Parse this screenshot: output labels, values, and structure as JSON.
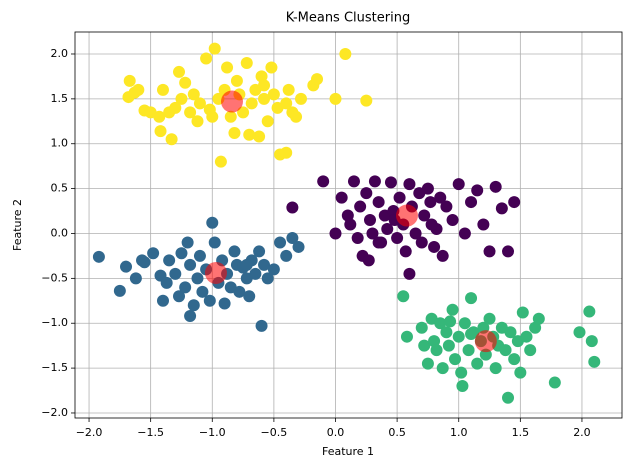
{
  "chart_data": {
    "type": "scatter",
    "title": "K-Means Clustering",
    "x_label": "Feature 1",
    "y_label": "Feature 2",
    "xlim": [
      -2.114,
      2.325
    ],
    "ylim": [
      -2.056,
      2.245
    ],
    "grid": true,
    "xticks": [
      {
        "value": -2.0,
        "label": "−2.0"
      },
      {
        "value": -1.5,
        "label": "−1.5"
      },
      {
        "value": -1.0,
        "label": "−1.0"
      },
      {
        "value": -0.5,
        "label": "−0.5"
      },
      {
        "value": 0.0,
        "label": "0.0"
      },
      {
        "value": 0.5,
        "label": "0.5"
      },
      {
        "value": 1.0,
        "label": "1.0"
      },
      {
        "value": 1.5,
        "label": "1.5"
      },
      {
        "value": 2.0,
        "label": "2.0"
      }
    ],
    "yticks": [
      {
        "value": -2.0,
        "label": "−2.0"
      },
      {
        "value": -1.5,
        "label": "−1.5"
      },
      {
        "value": -1.0,
        "label": "−1.0"
      },
      {
        "value": -0.5,
        "label": "−0.5"
      },
      {
        "value": 0.0,
        "label": "0.0"
      },
      {
        "value": 0.5,
        "label": "0.5"
      },
      {
        "value": 1.0,
        "label": "1.0"
      },
      {
        "value": 1.5,
        "label": "1.5"
      },
      {
        "value": 2.0,
        "label": "2.0"
      }
    ],
    "series": [
      {
        "color": "#fde725",
        "marker_size": 6,
        "opacity": 1,
        "x": [
          -1.67,
          -1.68,
          -1.63,
          -1.6,
          -1.55,
          -1.5,
          -1.43,
          -1.42,
          -1.4,
          -1.35,
          -1.33,
          -1.3,
          -1.27,
          -1.25,
          -1.22,
          -1.18,
          -1.15,
          -1.12,
          -1.1,
          -1.05,
          -1.02,
          -1.0,
          -0.98,
          -0.95,
          -0.93,
          -0.9,
          -0.88,
          -0.85,
          -0.82,
          -0.8,
          -0.78,
          -0.75,
          -0.72,
          -0.7,
          -0.68,
          -0.65,
          -0.62,
          -0.6,
          -0.58,
          -0.55,
          -0.52,
          -0.5,
          -0.47,
          -0.45,
          -0.4,
          -0.38,
          -0.35,
          -0.32,
          -0.28,
          -0.18,
          -0.15,
          0.0,
          0.08,
          0.25,
          -0.4,
          -0.58
        ],
        "values": [
          1.7,
          1.52,
          1.57,
          1.6,
          1.37,
          1.35,
          1.3,
          1.14,
          1.6,
          1.35,
          1.05,
          1.4,
          1.8,
          1.5,
          1.68,
          1.35,
          1.55,
          1.25,
          1.45,
          1.95,
          1.38,
          1.3,
          2.06,
          1.5,
          0.8,
          1.6,
          1.85,
          1.3,
          1.12,
          1.7,
          1.55,
          1.35,
          1.9,
          1.1,
          1.45,
          1.6,
          1.08,
          1.75,
          1.5,
          1.25,
          1.85,
          1.55,
          1.4,
          0.88,
          0.9,
          1.6,
          1.35,
          1.3,
          1.5,
          1.65,
          1.72,
          1.5,
          2.0,
          1.48,
          1.45,
          1.65
        ]
      },
      {
        "color": "#440154",
        "marker_size": 6,
        "opacity": 1,
        "x": [
          -0.35,
          -0.1,
          0.0,
          0.05,
          0.1,
          0.12,
          0.15,
          0.18,
          0.2,
          0.22,
          0.25,
          0.27,
          0.28,
          0.3,
          0.32,
          0.35,
          0.37,
          0.4,
          0.42,
          0.45,
          0.47,
          0.5,
          0.52,
          0.55,
          0.57,
          0.6,
          0.62,
          0.65,
          0.68,
          0.7,
          0.72,
          0.75,
          0.77,
          0.8,
          0.82,
          0.85,
          0.87,
          0.9,
          0.95,
          1.0,
          1.05,
          1.1,
          1.15,
          1.2,
          1.25,
          1.3,
          1.35,
          1.4,
          1.45,
          0.6,
          0.35,
          0.48,
          0.78
        ],
        "values": [
          0.29,
          0.58,
          0.0,
          0.4,
          0.2,
          0.1,
          0.58,
          -0.05,
          0.3,
          -0.25,
          0.45,
          -0.3,
          0.15,
          0.0,
          0.58,
          0.35,
          -0.1,
          0.2,
          0.05,
          0.57,
          0.25,
          -0.05,
          0.4,
          0.1,
          -0.2,
          0.55,
          0.3,
          0.0,
          0.45,
          -0.1,
          0.2,
          0.5,
          0.35,
          -0.15,
          0.05,
          0.4,
          -0.25,
          0.3,
          0.15,
          0.55,
          0.0,
          0.35,
          0.48,
          0.1,
          -0.2,
          0.52,
          0.28,
          -0.2,
          0.35,
          -0.45,
          -0.1,
          0.15,
          0.1
        ]
      },
      {
        "color": "#31688e",
        "marker_size": 6,
        "opacity": 1,
        "x": [
          -1.92,
          -1.75,
          -1.7,
          -1.62,
          -1.57,
          -1.55,
          -1.48,
          -1.42,
          -1.4,
          -1.37,
          -1.35,
          -1.3,
          -1.27,
          -1.25,
          -1.22,
          -1.2,
          -1.18,
          -1.15,
          -1.12,
          -1.1,
          -1.08,
          -1.05,
          -1.02,
          -1.0,
          -0.98,
          -0.95,
          -0.92,
          -0.9,
          -0.88,
          -0.85,
          -0.82,
          -0.8,
          -0.78,
          -0.75,
          -0.72,
          -0.7,
          -0.68,
          -0.65,
          -0.62,
          -0.6,
          -0.58,
          -0.55,
          -0.5,
          -0.45,
          -0.4,
          -0.35,
          -0.3,
          -1.18,
          -0.72
        ],
        "values": [
          -0.26,
          -0.64,
          -0.37,
          -0.5,
          -0.3,
          -0.32,
          -0.22,
          -0.47,
          -0.75,
          -0.55,
          -0.3,
          -0.45,
          -0.7,
          -0.22,
          -0.6,
          -0.1,
          -0.35,
          -0.8,
          -0.5,
          -0.25,
          -0.65,
          -0.4,
          -0.75,
          0.12,
          -0.1,
          -0.55,
          -0.3,
          -0.78,
          -0.45,
          -0.6,
          -0.2,
          -0.35,
          -0.65,
          -0.38,
          -0.5,
          -0.7,
          -0.3,
          -0.45,
          -0.2,
          -1.03,
          -0.35,
          -0.5,
          -0.4,
          -0.1,
          -0.25,
          -0.05,
          -0.15,
          -0.92,
          -0.35
        ]
      },
      {
        "color": "#35b779",
        "marker_size": 6,
        "opacity": 1,
        "x": [
          0.55,
          0.58,
          0.7,
          0.72,
          0.75,
          0.78,
          0.8,
          0.82,
          0.85,
          0.87,
          0.9,
          0.92,
          0.95,
          0.97,
          1.0,
          1.02,
          1.03,
          1.05,
          1.08,
          1.1,
          1.12,
          1.15,
          1.18,
          1.2,
          1.22,
          1.25,
          1.28,
          1.3,
          1.32,
          1.35,
          1.38,
          1.4,
          1.42,
          1.45,
          1.48,
          1.5,
          1.52,
          1.55,
          1.58,
          1.62,
          1.65,
          1.78,
          1.98,
          2.06,
          2.08,
          2.1,
          0.93,
          1.1
        ],
        "values": [
          -0.7,
          -1.15,
          -1.05,
          -1.25,
          -1.45,
          -0.95,
          -1.2,
          -1.3,
          -1.0,
          -1.5,
          -1.1,
          -1.25,
          -0.85,
          -1.4,
          -1.15,
          -1.55,
          -1.7,
          -1.0,
          -1.3,
          -0.72,
          -1.1,
          -1.45,
          -1.2,
          -1.05,
          -1.35,
          -0.95,
          -1.15,
          -1.5,
          -1.25,
          -1.05,
          -1.3,
          -1.83,
          -1.1,
          -1.4,
          -1.2,
          -1.55,
          -0.88,
          -1.15,
          -1.3,
          -1.05,
          -0.95,
          -1.66,
          -1.1,
          -0.87,
          -1.2,
          -1.43,
          -0.98,
          -1.12
        ]
      },
      {
        "color": "#ff0000",
        "marker_size": 11,
        "opacity": 0.55,
        "x": [
          -0.84,
          0.58,
          -0.97,
          1.22
        ],
        "values": [
          1.47,
          0.2,
          -0.44,
          -1.2
        ]
      }
    ]
  }
}
